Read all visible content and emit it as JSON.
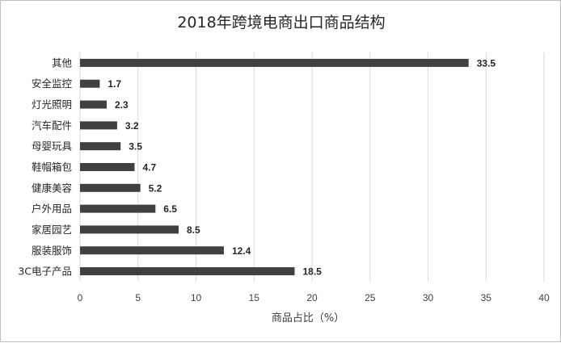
{
  "chart_data": {
    "type": "bar",
    "orientation": "horizontal",
    "title": "2018年跨境电商出口商品结构",
    "xlabel": "商品占比（%）",
    "ylabel": "",
    "xlim": [
      0,
      40
    ],
    "xticks": [
      0,
      5,
      10,
      15,
      20,
      25,
      30,
      35,
      40
    ],
    "grid": true,
    "legend": "none",
    "bar_color": "#404040",
    "categories": [
      "其他",
      "安全监控",
      "灯光照明",
      "汽车配件",
      "母婴玩具",
      "鞋帽箱包",
      "健康美容",
      "户外用品",
      "家居园艺",
      "服装服饰",
      "3C电子产品"
    ],
    "values": [
      33.5,
      1.7,
      2.3,
      3.2,
      3.5,
      4.7,
      5.2,
      6.5,
      8.5,
      12.4,
      18.5
    ],
    "value_labels": [
      "33.5",
      "1.7",
      "2.3",
      "3.2",
      "3.5",
      "4.7",
      "5.2",
      "6.5",
      "8.5",
      "12.4",
      "18.5"
    ]
  }
}
